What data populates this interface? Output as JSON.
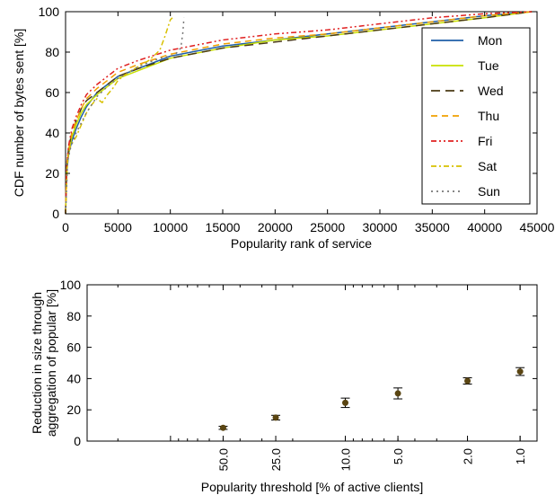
{
  "chart_data": [
    {
      "type": "line",
      "xlabel": "Popularity rank of service",
      "ylabel": "CDF number of bytes sent [%]",
      "xlim": [
        0,
        45000
      ],
      "ylim": [
        0,
        100
      ],
      "xticks": [
        "0",
        "5000",
        "10000",
        "15000",
        "20000",
        "25000",
        "30000",
        "35000",
        "40000",
        "45000"
      ],
      "yticks": [
        "0",
        "20",
        "40",
        "60",
        "80",
        "100"
      ],
      "grid": false,
      "legend_position": "right",
      "series": [
        {
          "name": "Mon",
          "color": "#1f5fa8",
          "dash": "solid",
          "x": [
            0,
            100,
            300,
            600,
            1000,
            1500,
            2000,
            3000,
            4000,
            5000,
            7000,
            10000,
            15000,
            20000,
            25000,
            30000,
            35000,
            40000,
            44500
          ],
          "y": [
            0,
            20,
            30,
            36,
            42,
            48,
            53,
            60,
            64,
            68,
            72,
            78,
            83,
            86,
            89,
            92,
            95,
            98,
            100
          ]
        },
        {
          "name": "Tue",
          "color": "#c8e000",
          "dash": "solid",
          "x": [
            0,
            100,
            300,
            600,
            1000,
            1500,
            2000,
            3000,
            4000,
            5000,
            7000,
            10000,
            15000,
            20000,
            25000,
            30000,
            35000,
            40000,
            44500
          ],
          "y": [
            0,
            21,
            31,
            38,
            44,
            50,
            54,
            59,
            63,
            67,
            71,
            77,
            82,
            86,
            88,
            91,
            94,
            97,
            100
          ]
        },
        {
          "name": "Wed",
          "color": "#4a3a14",
          "dash": "long-dash",
          "x": [
            0,
            100,
            300,
            600,
            1000,
            1500,
            2000,
            3000,
            4000,
            5000,
            7000,
            10000,
            15000,
            20000,
            25000,
            30000,
            35000,
            40000,
            44500
          ],
          "y": [
            0,
            23,
            33,
            40,
            46,
            52,
            56,
            60,
            64,
            68,
            72,
            77,
            82,
            85,
            88,
            91,
            94,
            97,
            100
          ]
        },
        {
          "name": "Thu",
          "color": "#f0a000",
          "dash": "dash",
          "x": [
            0,
            100,
            300,
            600,
            1000,
            1500,
            2000,
            3000,
            4000,
            5000,
            7000,
            10000,
            15000,
            20000,
            25000,
            30000,
            35000,
            40000,
            44500
          ],
          "y": [
            0,
            22,
            32,
            40,
            46,
            52,
            57,
            62,
            66,
            70,
            74,
            79,
            84,
            87,
            89,
            92,
            95,
            98,
            100
          ]
        },
        {
          "name": "Fri",
          "color": "#e02020",
          "dash": "dash-dot-dot",
          "x": [
            0,
            100,
            300,
            600,
            1000,
            1500,
            2000,
            3000,
            4000,
            5000,
            7000,
            10000,
            15000,
            20000,
            25000,
            30000,
            35000,
            40000,
            44500
          ],
          "y": [
            0,
            24,
            34,
            42,
            48,
            54,
            59,
            64,
            68,
            72,
            76,
            81,
            86,
            89,
            91,
            94,
            97,
            99,
            100
          ]
        },
        {
          "name": "Sat",
          "color": "#d8c000",
          "dash": "dash-dot",
          "x": [
            0,
            200,
            500,
            1000,
            1500,
            2000,
            2500,
            3000,
            3500,
            4000,
            4500,
            5000,
            6000,
            7000,
            8000,
            9000,
            9500,
            10000,
            10200
          ],
          "y": [
            0,
            28,
            34,
            38,
            44,
            50,
            54,
            57,
            55,
            59,
            62,
            66,
            70,
            73,
            76,
            81,
            88,
            96,
            97
          ]
        },
        {
          "name": "Sun",
          "color": "#777777",
          "dash": "dot",
          "x": [
            0,
            200,
            500,
            1000,
            2000,
            3000,
            4000,
            5000,
            6000,
            7000,
            8000,
            9000,
            10000,
            10500,
            11000,
            11200,
            11300
          ],
          "y": [
            0,
            26,
            33,
            40,
            50,
            58,
            63,
            67,
            70,
            73,
            75,
            77,
            78,
            79,
            82,
            90,
            97
          ]
        }
      ]
    },
    {
      "type": "scatter",
      "xlabel": "Popularity threshold [% of active clients]",
      "ylabel_lines": [
        "Reduction in size through",
        "aggregation of popular [%]"
      ],
      "ylim": [
        0,
        100
      ],
      "yticks": [
        "0",
        "20",
        "40",
        "60",
        "80",
        "100"
      ],
      "x_scale": "log-reversed",
      "xlim": [
        300,
        0.8
      ],
      "categories": [
        "50.0",
        "25.0",
        "10.0",
        "5.0",
        "2.0",
        "1.0"
      ],
      "x": [
        50,
        25,
        10,
        5,
        2,
        1
      ],
      "values": [
        8.5,
        15,
        24.5,
        30.5,
        38.5,
        44.5
      ],
      "error": [
        1.0,
        1.5,
        3.0,
        3.5,
        2.0,
        2.5
      ],
      "marker_color": "#5a4512"
    }
  ]
}
